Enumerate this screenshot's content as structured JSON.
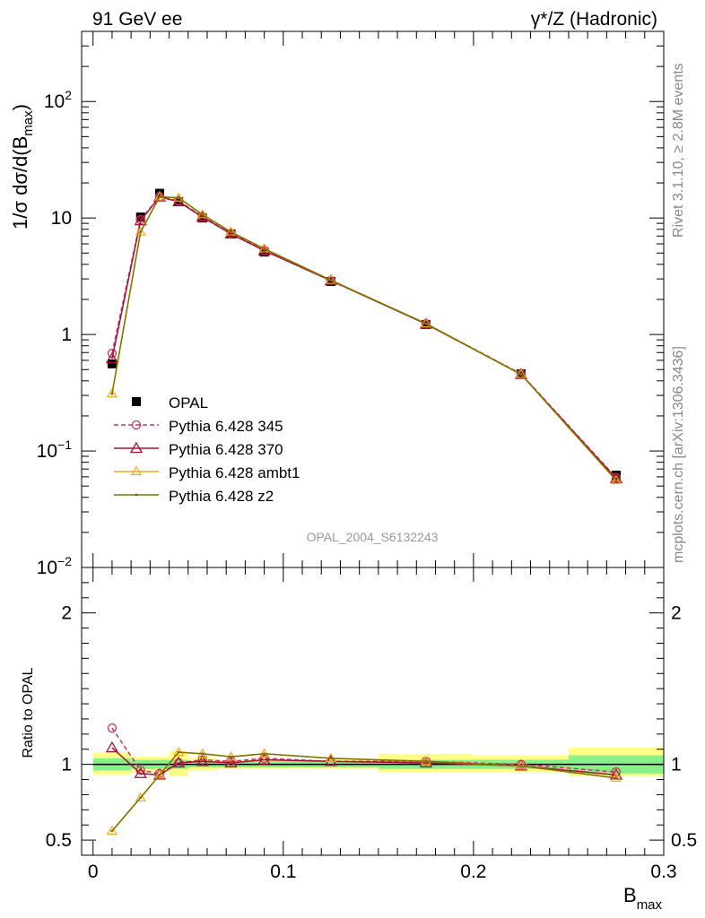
{
  "header": {
    "left": "91 GeV ee",
    "right": "γ*/Z (Hadronic)"
  },
  "side_labels": {
    "rivet": "Rivet 3.1.10, ≥ 2.8M events",
    "site": "mcplots.cern.ch [arXiv:1306.3436]"
  },
  "watermark": "OPAL_2004_S6132243",
  "colors": {
    "opal": "#000000",
    "p345": "#cc3366",
    "p370": "#aa1133",
    "ambt1": "#f0a818",
    "z2": "#7f7400",
    "band_inner": "#88f088",
    "band_outer": "#ffff88"
  },
  "chart_data": [
    {
      "type": "line",
      "ylabel": "1/σ dσ/d(B_max)",
      "ylabel_main": "1/σ dσ/d(B",
      "ylabel_sub": "max",
      "ylabel_close": ")",
      "yscale": "log",
      "ylim": [
        0.01,
        400
      ],
      "xlim": [
        -0.006,
        0.3
      ],
      "yticks": [
        {
          "value": 0.01,
          "base": "10",
          "exp": "−2",
          "plain": ""
        },
        {
          "value": 0.1,
          "base": "10",
          "exp": "−1",
          "plain": ""
        },
        {
          "value": 1,
          "base": "",
          "exp": "",
          "plain": "1"
        },
        {
          "value": 10,
          "base": "",
          "exp": "",
          "plain": "10"
        },
        {
          "value": 100,
          "base": "10",
          "exp": "2",
          "plain": ""
        }
      ],
      "x": [
        0.01,
        0.025,
        0.035,
        0.045,
        0.0575,
        0.0725,
        0.09,
        0.125,
        0.175,
        0.225,
        0.275
      ],
      "data_series": {
        "name": "OPAL",
        "values": [
          0.56,
          10.2,
          16.3,
          13.8,
          10.0,
          7.3,
          5.1,
          2.85,
          1.22,
          0.46,
          0.062
        ]
      },
      "series": [
        {
          "name": "Pythia 6.428 345",
          "values": [
            0.69,
            9.7,
            15.3,
            14.0,
            10.3,
            7.4,
            5.3,
            2.9,
            1.24,
            0.46,
            0.059
          ]
        },
        {
          "name": "Pythia 6.428 370",
          "values": [
            0.62,
            9.5,
            15.2,
            13.8,
            10.2,
            7.3,
            5.25,
            2.9,
            1.23,
            0.455,
            0.058
          ]
        },
        {
          "name": "Pythia 6.428 ambt1",
          "values": [
            0.31,
            7.6,
            15.2,
            14.9,
            10.7,
            7.6,
            5.45,
            2.93,
            1.24,
            0.455,
            0.056
          ]
        },
        {
          "name": "Pythia 6.428 z2",
          "values": [
            0.31,
            7.6,
            15.2,
            14.9,
            10.7,
            7.6,
            5.45,
            2.93,
            1.24,
            0.455,
            0.056
          ]
        }
      ]
    },
    {
      "type": "line",
      "ylabel": "Ratio to OPAL",
      "xlabel": "B_max",
      "xlabel_main": "B",
      "xlabel_sub": "max",
      "ylim": [
        0.4,
        2.3
      ],
      "xlim": [
        -0.006,
        0.3
      ],
      "yticks": [
        0.5,
        1,
        2
      ],
      "yticklabels": [
        "0.5",
        "1",
        "2"
      ],
      "xticks": [
        0,
        0.1,
        0.2,
        0.3
      ],
      "xticklabels": [
        "0",
        "0.1",
        "0.2",
        "0.3"
      ],
      "bins": [
        [
          0,
          0.02
        ],
        [
          0.02,
          0.03
        ],
        [
          0.03,
          0.04
        ],
        [
          0.04,
          0.05
        ],
        [
          0.05,
          0.065
        ],
        [
          0.065,
          0.08
        ],
        [
          0.08,
          0.1
        ],
        [
          0.1,
          0.15
        ],
        [
          0.15,
          0.2
        ],
        [
          0.2,
          0.25
        ],
        [
          0.25,
          0.3
        ]
      ],
      "band_inner": [
        [
          0.96,
          1.04
        ],
        [
          0.97,
          1.03
        ],
        [
          0.97,
          1.03
        ],
        [
          0.97,
          1.03
        ],
        [
          0.98,
          1.02
        ],
        [
          0.98,
          1.02
        ],
        [
          0.98,
          1.02
        ],
        [
          0.98,
          1.02
        ],
        [
          0.97,
          1.03
        ],
        [
          0.97,
          1.03
        ],
        [
          0.94,
          1.06
        ]
      ],
      "band_outer": [
        [
          0.93,
          1.08
        ],
        [
          0.95,
          1.05
        ],
        [
          0.95,
          1.05
        ],
        [
          0.92,
          1.09
        ],
        [
          0.96,
          1.04
        ],
        [
          0.97,
          1.03
        ],
        [
          0.97,
          1.03
        ],
        [
          0.97,
          1.03
        ],
        [
          0.95,
          1.07
        ],
        [
          0.95,
          1.06
        ],
        [
          0.92,
          1.11
        ]
      ],
      "x": [
        0.01,
        0.025,
        0.035,
        0.045,
        0.0575,
        0.0725,
        0.09,
        0.125,
        0.175,
        0.225,
        0.275
      ],
      "series": [
        {
          "name": "Pythia 6.428 345",
          "values": [
            1.24,
            0.96,
            0.94,
            1.01,
            1.03,
            1.02,
            1.04,
            1.02,
            1.02,
            1.0,
            0.95
          ]
        },
        {
          "name": "Pythia 6.428 370",
          "values": [
            1.11,
            0.94,
            0.93,
            1.01,
            1.02,
            1.01,
            1.03,
            1.02,
            1.01,
            0.99,
            0.93
          ]
        },
        {
          "name": "Pythia 6.428 ambt1",
          "values": [
            0.56,
            0.78,
            0.93,
            1.08,
            1.07,
            1.05,
            1.07,
            1.04,
            1.02,
            0.99,
            0.91
          ]
        },
        {
          "name": "Pythia 6.428 z2",
          "values": [
            0.56,
            0.78,
            0.93,
            1.08,
            1.07,
            1.05,
            1.07,
            1.04,
            1.02,
            0.99,
            0.91
          ]
        }
      ]
    }
  ]
}
